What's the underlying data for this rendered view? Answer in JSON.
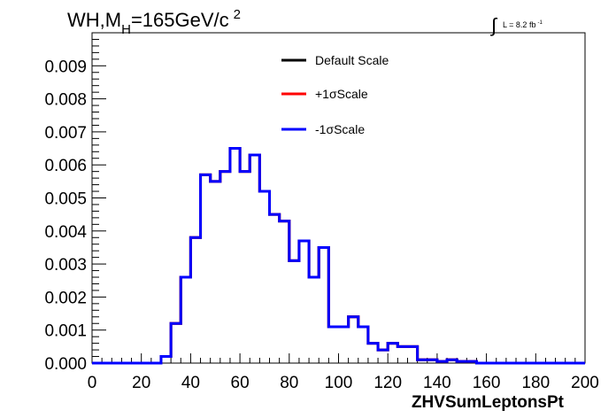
{
  "title": {
    "main": "WH,M",
    "sub": "H",
    "rest": "=165GeV/c",
    "sup": "2"
  },
  "luminosity": {
    "symbol": "∫",
    "text": "L = 8.2 fb",
    "sup": "-1"
  },
  "legend": [
    {
      "label": "Default Scale",
      "color": "#000000"
    },
    {
      "label": "+1σScale",
      "color": "#ff0000"
    },
    {
      "label": "-1σScale",
      "color": "#0000ff"
    }
  ],
  "chart_data": {
    "type": "line",
    "style": "step-histogram",
    "title": "WH,MH=165GeV/c2",
    "xlabel": "ZHVSumLeptonsPt",
    "ylabel": "",
    "xlim": [
      0,
      200
    ],
    "ylim": [
      0,
      0.01
    ],
    "x_ticks": [
      0,
      20,
      40,
      60,
      80,
      100,
      120,
      140,
      160,
      180,
      200
    ],
    "x_tick_labels": [
      "0",
      "20",
      "40",
      "60",
      "80",
      "100",
      "120",
      "140",
      "160",
      "180",
      "200"
    ],
    "y_ticks": [
      0,
      0.001,
      0.002,
      0.003,
      0.004,
      0.005,
      0.006,
      0.007,
      0.008,
      0.009
    ],
    "y_tick_labels": [
      "0.000",
      "0.001",
      "0.002",
      "0.003",
      "0.004",
      "0.005",
      "0.006",
      "0.007",
      "0.008",
      "0.009"
    ],
    "bin_edges": [
      0,
      4,
      8,
      12,
      16,
      20,
      24,
      28,
      32,
      36,
      40,
      44,
      48,
      52,
      56,
      60,
      64,
      68,
      72,
      76,
      80,
      84,
      88,
      92,
      96,
      100,
      104,
      108,
      112,
      116,
      120,
      124,
      128,
      132,
      136,
      140,
      144,
      148,
      152,
      156,
      160,
      164,
      168,
      172,
      176,
      180,
      184,
      188,
      192,
      196,
      200
    ],
    "series": [
      {
        "name": "Default Scale",
        "color": "#000000",
        "values": [
          0,
          0,
          0,
          0,
          0,
          0,
          0,
          0.0002,
          0.0012,
          0.0026,
          0.0038,
          0.0057,
          0.0055,
          0.0058,
          0.0065,
          0.0058,
          0.0063,
          0.0052,
          0.0045,
          0.0043,
          0.0031,
          0.0037,
          0.0026,
          0.0035,
          0.0011,
          0.0011,
          0.0014,
          0.0011,
          0.0006,
          0.0004,
          0.0006,
          0.0005,
          0.0005,
          0.0001,
          0.0001,
          5e-05,
          0.0001,
          5e-05,
          5e-05,
          0,
          0,
          0,
          0,
          0,
          0,
          0,
          0,
          0,
          0,
          0
        ]
      },
      {
        "name": "+1σScale",
        "color": "#ff0000",
        "values": [
          0,
          0,
          0,
          0,
          0,
          0,
          0,
          0.0002,
          0.0012,
          0.0026,
          0.0038,
          0.0057,
          0.0055,
          0.0058,
          0.0065,
          0.0058,
          0.0063,
          0.0052,
          0.0045,
          0.0043,
          0.0031,
          0.0037,
          0.0026,
          0.0035,
          0.0011,
          0.0011,
          0.0014,
          0.0011,
          0.0006,
          0.0004,
          0.0006,
          0.0005,
          0.0005,
          0.0001,
          0.0001,
          5e-05,
          0.0001,
          5e-05,
          5e-05,
          0,
          0,
          0,
          0,
          0,
          0,
          0,
          0,
          0,
          0,
          0
        ]
      },
      {
        "name": "-1σScale",
        "color": "#0000ff",
        "values": [
          0,
          0,
          0,
          0,
          0,
          0,
          0,
          0.0002,
          0.0012,
          0.0026,
          0.0038,
          0.0057,
          0.0055,
          0.0058,
          0.0065,
          0.0058,
          0.0063,
          0.0052,
          0.0045,
          0.0043,
          0.0031,
          0.0037,
          0.0026,
          0.0035,
          0.0011,
          0.0011,
          0.0014,
          0.0011,
          0.0006,
          0.0004,
          0.0006,
          0.0005,
          0.0005,
          0.0001,
          0.0001,
          5e-05,
          0.0001,
          5e-05,
          5e-05,
          0,
          0,
          0,
          0,
          0,
          0,
          0,
          0,
          0,
          0,
          0
        ]
      }
    ]
  }
}
